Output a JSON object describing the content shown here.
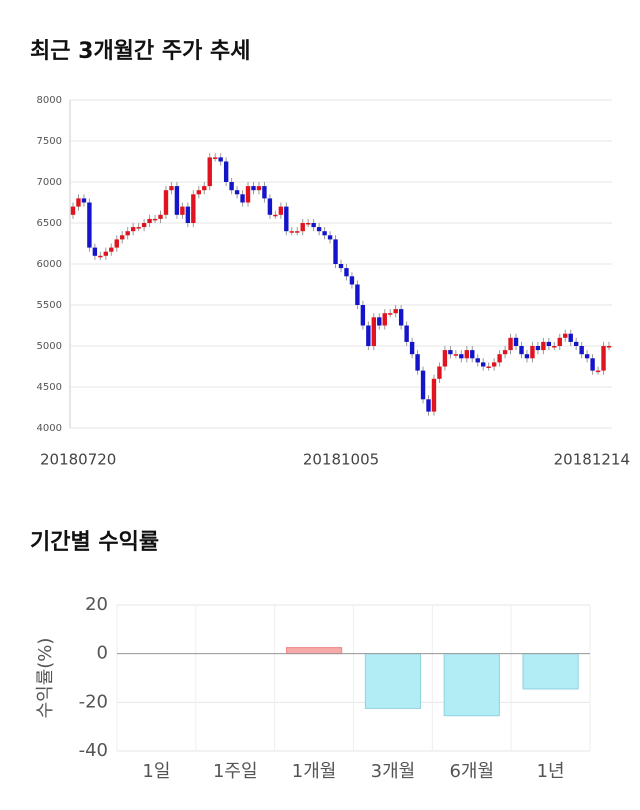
{
  "chart_data": [
    {
      "type": "candlestick",
      "title": "최근 3개월간 주가 추세",
      "categories": [
        "20180720",
        null,
        null,
        null,
        null,
        null,
        null,
        null,
        null,
        null,
        null,
        null,
        null,
        null,
        null,
        null,
        null,
        null,
        null,
        null,
        null,
        null,
        null,
        null,
        null,
        null,
        null,
        null,
        null,
        null,
        null,
        null,
        null,
        null,
        null,
        null,
        null,
        null,
        null,
        null,
        null,
        null,
        null,
        null,
        null,
        null,
        null,
        null,
        null,
        "20181005",
        null,
        null,
        null,
        null,
        null,
        null,
        null,
        null,
        null,
        null,
        null,
        null,
        null,
        null,
        null,
        null,
        null,
        null,
        null,
        null,
        null,
        null,
        null,
        null,
        null,
        null,
        null,
        null,
        null,
        null,
        null,
        null,
        null,
        null,
        null,
        null,
        null,
        null,
        null,
        null,
        null,
        null,
        null,
        null,
        null,
        null,
        null,
        null,
        "20181214"
      ],
      "open": [
        6600,
        6700,
        6800,
        6750,
        6200,
        6100,
        6100,
        6150,
        6200,
        6300,
        6350,
        6400,
        6450,
        6450,
        6500,
        6550,
        6550,
        6600,
        6900,
        6950,
        6600,
        6700,
        6500,
        6850,
        6900,
        6950,
        7300,
        7300,
        7250,
        7000,
        6900,
        6850,
        6750,
        6950,
        6900,
        6950,
        6800,
        6600,
        6600,
        6700,
        6400,
        6400,
        6400,
        6500,
        6500,
        6450,
        6400,
        6350,
        6300,
        6000,
        5950,
        5850,
        5750,
        5500,
        5250,
        5000,
        5350,
        5250,
        5400,
        5400,
        5450,
        5250,
        5050,
        4900,
        4700,
        4350,
        4200,
        4600,
        4750,
        4950,
        4900,
        4900,
        4850,
        4950,
        4850,
        4800,
        4750,
        4750,
        4800,
        4900,
        4950,
        5100,
        5000,
        4900,
        4850,
        5000,
        4950,
        5050,
        5000,
        5000,
        5100,
        5150,
        5050,
        5000,
        4900,
        4850,
        4700,
        4700,
        5000
      ],
      "high": [
        6750,
        6850,
        6850,
        6800,
        6250,
        6150,
        6200,
        6250,
        6350,
        6400,
        6450,
        6500,
        6500,
        6550,
        6600,
        6600,
        6650,
        6950,
        7000,
        7000,
        6750,
        6750,
        6900,
        6950,
        7000,
        7350,
        7350,
        7350,
        7300,
        7050,
        6950,
        6900,
        7000,
        7000,
        7000,
        7000,
        6850,
        6650,
        6750,
        6750,
        6450,
        6450,
        6550,
        6550,
        6550,
        6500,
        6450,
        6400,
        6350,
        6050,
        6000,
        5900,
        5800,
        5550,
        5300,
        5400,
        5400,
        5450,
        5450,
        5500,
        5500,
        5300,
        5100,
        4950,
        4750,
        4400,
        4650,
        4800,
        5000,
        5000,
        4950,
        4950,
        5000,
        5000,
        4900,
        4850,
        4800,
        4850,
        4950,
        5000,
        5150,
        5150,
        5050,
        4950,
        5050,
        5050,
        5100,
        5100,
        5050,
        5150,
        5200,
        5200,
        5100,
        5050,
        4950,
        4900,
        4750,
        5050,
        5050
      ],
      "low": [
        6550,
        6650,
        6700,
        6150,
        6050,
        6050,
        6050,
        6100,
        6150,
        6250,
        6300,
        6350,
        6400,
        6400,
        6450,
        6500,
        6500,
        6550,
        6850,
        6550,
        6550,
        6450,
        6450,
        6800,
        6850,
        6900,
        7250,
        7200,
        6950,
        6850,
        6800,
        6700,
        6700,
        6850,
        6850,
        6750,
        6550,
        6550,
        6550,
        6350,
        6350,
        6350,
        6350,
        6450,
        6400,
        6350,
        6300,
        6250,
        5950,
        5900,
        5800,
        5700,
        5450,
        5200,
        4950,
        4950,
        5200,
        5200,
        5350,
        5350,
        5200,
        5000,
        4850,
        4650,
        4300,
        4150,
        4150,
        4550,
        4700,
        4850,
        4850,
        4800,
        4800,
        4800,
        4750,
        4700,
        4700,
        4700,
        4750,
        4850,
        4900,
        4950,
        4850,
        4800,
        4800,
        4900,
        4900,
        4950,
        4950,
        4950,
        5050,
        5000,
        4950,
        4850,
        4800,
        4650,
        4650,
        4650,
        4950
      ],
      "close": [
        6700,
        6800,
        6750,
        6200,
        6100,
        6100,
        6150,
        6200,
        6300,
        6350,
        6400,
        6450,
        6450,
        6500,
        6550,
        6550,
        6600,
        6900,
        6950,
        6600,
        6700,
        6500,
        6850,
        6900,
        6950,
        7300,
        7300,
        7250,
        7000,
        6900,
        6850,
        6750,
        6950,
        6900,
        6950,
        6800,
        6600,
        6600,
        6700,
        6400,
        6400,
        6400,
        6500,
        6500,
        6450,
        6400,
        6350,
        6300,
        6000,
        5950,
        5850,
        5750,
        5500,
        5250,
        5000,
        5350,
        5250,
        5400,
        5400,
        5450,
        5250,
        5050,
        4900,
        4700,
        4350,
        4200,
        4600,
        4750,
        4950,
        4900,
        4900,
        4850,
        4950,
        4850,
        4800,
        4750,
        4750,
        4800,
        4900,
        4950,
        5100,
        5000,
        4900,
        4850,
        5000,
        4950,
        5050,
        5000,
        5000,
        5100,
        5150,
        5050,
        5000,
        4900,
        4850,
        4700,
        4700,
        5000,
        5000
      ],
      "up_color": "#e0141e",
      "down_color": "#1414c8",
      "ylim": [
        4000,
        8000
      ],
      "yticks": [
        4000,
        4500,
        5000,
        5500,
        6000,
        6500,
        7000,
        7500,
        8000
      ],
      "grid": true
    },
    {
      "type": "bar",
      "title": "기간별 수익률",
      "ylabel": "수익률(%)",
      "categories": [
        "1일",
        "1주일",
        "1개월",
        "3개월",
        "6개월",
        "1년"
      ],
      "values": [
        0,
        0,
        2.5,
        -22.5,
        -25.5,
        -14.5
      ],
      "positive_color": "#f7a8a8",
      "negative_color": "#b2ecf5",
      "ylim": [
        -40,
        20
      ],
      "yticks": [
        -40,
        -20,
        0,
        20
      ],
      "grid": true
    }
  ]
}
